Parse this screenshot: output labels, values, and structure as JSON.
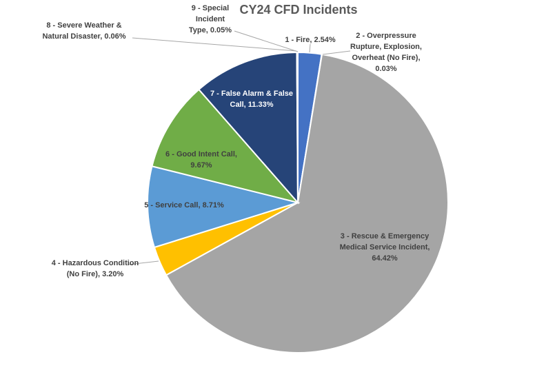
{
  "chart_data": {
    "type": "pie",
    "title": "CY24 CFD Incidents",
    "values": [
      2.54,
      0.03,
      64.42,
      3.2,
      8.71,
      9.67,
      11.33,
      0.06,
      0.05
    ],
    "value_labels": [
      [
        "1 - Fire, 2.54%"
      ],
      [
        "2 - Overpressure",
        "Rupture, Explosion,",
        "Overheat (No Fire),",
        "0.03%"
      ],
      [
        "3 - Rescue & Emergency",
        "Medical Service Incident,",
        "64.42%"
      ],
      [
        "4 - Hazardous Condition",
        "(No Fire), 3.20%"
      ],
      [
        "5 - Service Call, 8.71%"
      ],
      [
        "6 - Good Intent Call,",
        "9.67%"
      ],
      [
        "7 - False Alarm & False",
        "Call, 11.33%"
      ],
      [
        "8 - Severe Weather &",
        "Natural Disaster, 0.06%"
      ],
      [
        "9 - Special",
        "Incident",
        "Type, 0.05%"
      ]
    ],
    "colors": [
      "#4472c4",
      "#ed7d31",
      "#a5a5a5",
      "#ffc000",
      "#5b9bd5",
      "#70ad47",
      "#264478",
      "#9e480e",
      "#636363"
    ]
  }
}
